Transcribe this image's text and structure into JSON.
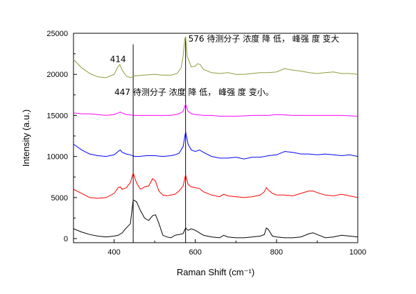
{
  "chart_data": {
    "type": "line",
    "xlabel": "Raman Shift (cm⁻¹)",
    "ylabel": "Intensity (a.u.)",
    "xlim": [
      300,
      1000
    ],
    "ylim": [
      -500,
      25000
    ],
    "x_ticks": [
      400,
      600,
      800,
      1000
    ],
    "y_ticks": [
      0,
      5000,
      10000,
      15000,
      20000,
      25000
    ],
    "x_tick_labels": [
      "400",
      "600",
      "800",
      "1000"
    ],
    "y_tick_labels": [
      "0",
      "5000",
      "10000",
      "15000",
      "20000",
      "25000"
    ],
    "grid": false,
    "legend": "none",
    "annotations": [
      {
        "text": "576 待测分子 浓度 降 低， 峰强 度 变大",
        "x": 576,
        "y": 24000
      },
      {
        "text": "414",
        "x": 414,
        "y": 21500
      },
      {
        "text": "447 待测分子 浓度 降 低， 峰强 度 变小。",
        "x": 447,
        "y": 17500
      }
    ],
    "reference_lines_x": [
      447,
      576
    ],
    "series": [
      {
        "color": "#000000",
        "x": [
          300,
          320,
          340,
          360,
          380,
          400,
          410,
          420,
          430,
          440,
          447,
          455,
          465,
          475,
          485,
          495,
          502,
          510,
          520,
          530,
          540,
          550,
          560,
          570,
          576,
          582,
          590,
          600,
          610,
          620,
          640,
          660,
          670,
          680,
          700,
          720,
          740,
          760,
          770,
          775,
          780,
          790,
          800,
          820,
          840,
          860,
          880,
          890,
          900,
          920,
          940,
          960,
          980,
          1000
        ],
        "values": [
          1200,
          800,
          500,
          300,
          200,
          300,
          400,
          700,
          1300,
          1800,
          4700,
          4500,
          3400,
          2500,
          2200,
          2800,
          2900,
          1900,
          400,
          200,
          100,
          400,
          500,
          600,
          1300,
          1000,
          1200,
          1000,
          700,
          400,
          200,
          100,
          400,
          200,
          100,
          100,
          200,
          300,
          500,
          1300,
          1100,
          300,
          200,
          100,
          100,
          200,
          600,
          700,
          500,
          100,
          200,
          400,
          300,
          200
        ]
      },
      {
        "color": "#ff0000",
        "x": [
          300,
          320,
          340,
          360,
          380,
          400,
          410,
          415,
          420,
          430,
          440,
          447,
          455,
          465,
          475,
          485,
          495,
          502,
          510,
          520,
          530,
          540,
          550,
          560,
          570,
          576,
          582,
          590,
          600,
          610,
          620,
          640,
          660,
          670,
          680,
          700,
          720,
          740,
          760,
          770,
          775,
          780,
          790,
          800,
          820,
          840,
          860,
          880,
          890,
          900,
          920,
          940,
          960,
          980,
          1000
        ],
        "values": [
          6000,
          5500,
          5000,
          4900,
          5000,
          5500,
          6200,
          6300,
          6000,
          6200,
          6800,
          8000,
          6800,
          6000,
          6300,
          6400,
          7300,
          7000,
          5800,
          5300,
          5200,
          5300,
          5400,
          5800,
          6400,
          7800,
          6600,
          6300,
          6200,
          6100,
          5700,
          5300,
          5100,
          5400,
          5200,
          5100,
          5000,
          5100,
          5300,
          5700,
          6200,
          5900,
          5500,
          5300,
          5300,
          5200,
          5500,
          5800,
          5800,
          5600,
          5300,
          5200,
          5400,
          5200,
          5000
        ]
      },
      {
        "color": "#0000ff",
        "x": [
          300,
          320,
          340,
          360,
          380,
          400,
          410,
          415,
          420,
          430,
          440,
          450,
          460,
          480,
          500,
          520,
          540,
          550,
          560,
          570,
          576,
          582,
          590,
          600,
          610,
          620,
          640,
          660,
          680,
          700,
          720,
          740,
          760,
          780,
          800,
          820,
          840,
          860,
          880,
          900,
          920,
          940,
          960,
          980,
          1000
        ],
        "values": [
          11500,
          10800,
          10300,
          10100,
          10000,
          10200,
          10600,
          10800,
          10500,
          10300,
          10200,
          10000,
          10000,
          10100,
          10100,
          10000,
          10100,
          10200,
          10400,
          11200,
          13000,
          11500,
          10800,
          10600,
          10800,
          10500,
          10000,
          9800,
          9800,
          9900,
          9700,
          9900,
          9900,
          10100,
          10200,
          10600,
          10500,
          10300,
          10300,
          10200,
          10300,
          10200,
          10100,
          10200,
          10000
        ]
      },
      {
        "color": "#ff00ff",
        "x": [
          300,
          320,
          340,
          360,
          380,
          400,
          415,
          430,
          450,
          470,
          500,
          520,
          540,
          560,
          570,
          576,
          582,
          590,
          600,
          620,
          640,
          660,
          700,
          740,
          780,
          800,
          840,
          880,
          920,
          960,
          1000
        ],
        "values": [
          15300,
          15200,
          15200,
          15100,
          15000,
          15100,
          15400,
          15100,
          15000,
          15000,
          15000,
          15000,
          15000,
          15200,
          15500,
          16400,
          15500,
          15200,
          15100,
          15000,
          15000,
          14900,
          14900,
          15000,
          15000,
          15100,
          15000,
          15000,
          15000,
          15000,
          14900
        ]
      },
      {
        "color": "#8c9c3c",
        "x": [
          300,
          320,
          340,
          360,
          380,
          400,
          408,
          414,
          420,
          430,
          440,
          450,
          470,
          500,
          520,
          540,
          555,
          565,
          570,
          574,
          576,
          580,
          590,
          600,
          605,
          612,
          620,
          640,
          660,
          680,
          700,
          720,
          740,
          760,
          780,
          800,
          820,
          840,
          860,
          880,
          900,
          920,
          940,
          960,
          980,
          1000
        ],
        "values": [
          21800,
          20800,
          20100,
          19700,
          19600,
          20000,
          20800,
          21200,
          20500,
          19800,
          19600,
          19800,
          19900,
          20000,
          19900,
          19900,
          20100,
          20800,
          22200,
          24300,
          24600,
          22200,
          20900,
          21000,
          21300,
          21200,
          20600,
          20200,
          20100,
          20200,
          20000,
          20000,
          20100,
          20200,
          20200,
          20300,
          20700,
          20500,
          20400,
          20200,
          20100,
          20200,
          20300,
          20100,
          20100,
          20000
        ]
      }
    ]
  }
}
